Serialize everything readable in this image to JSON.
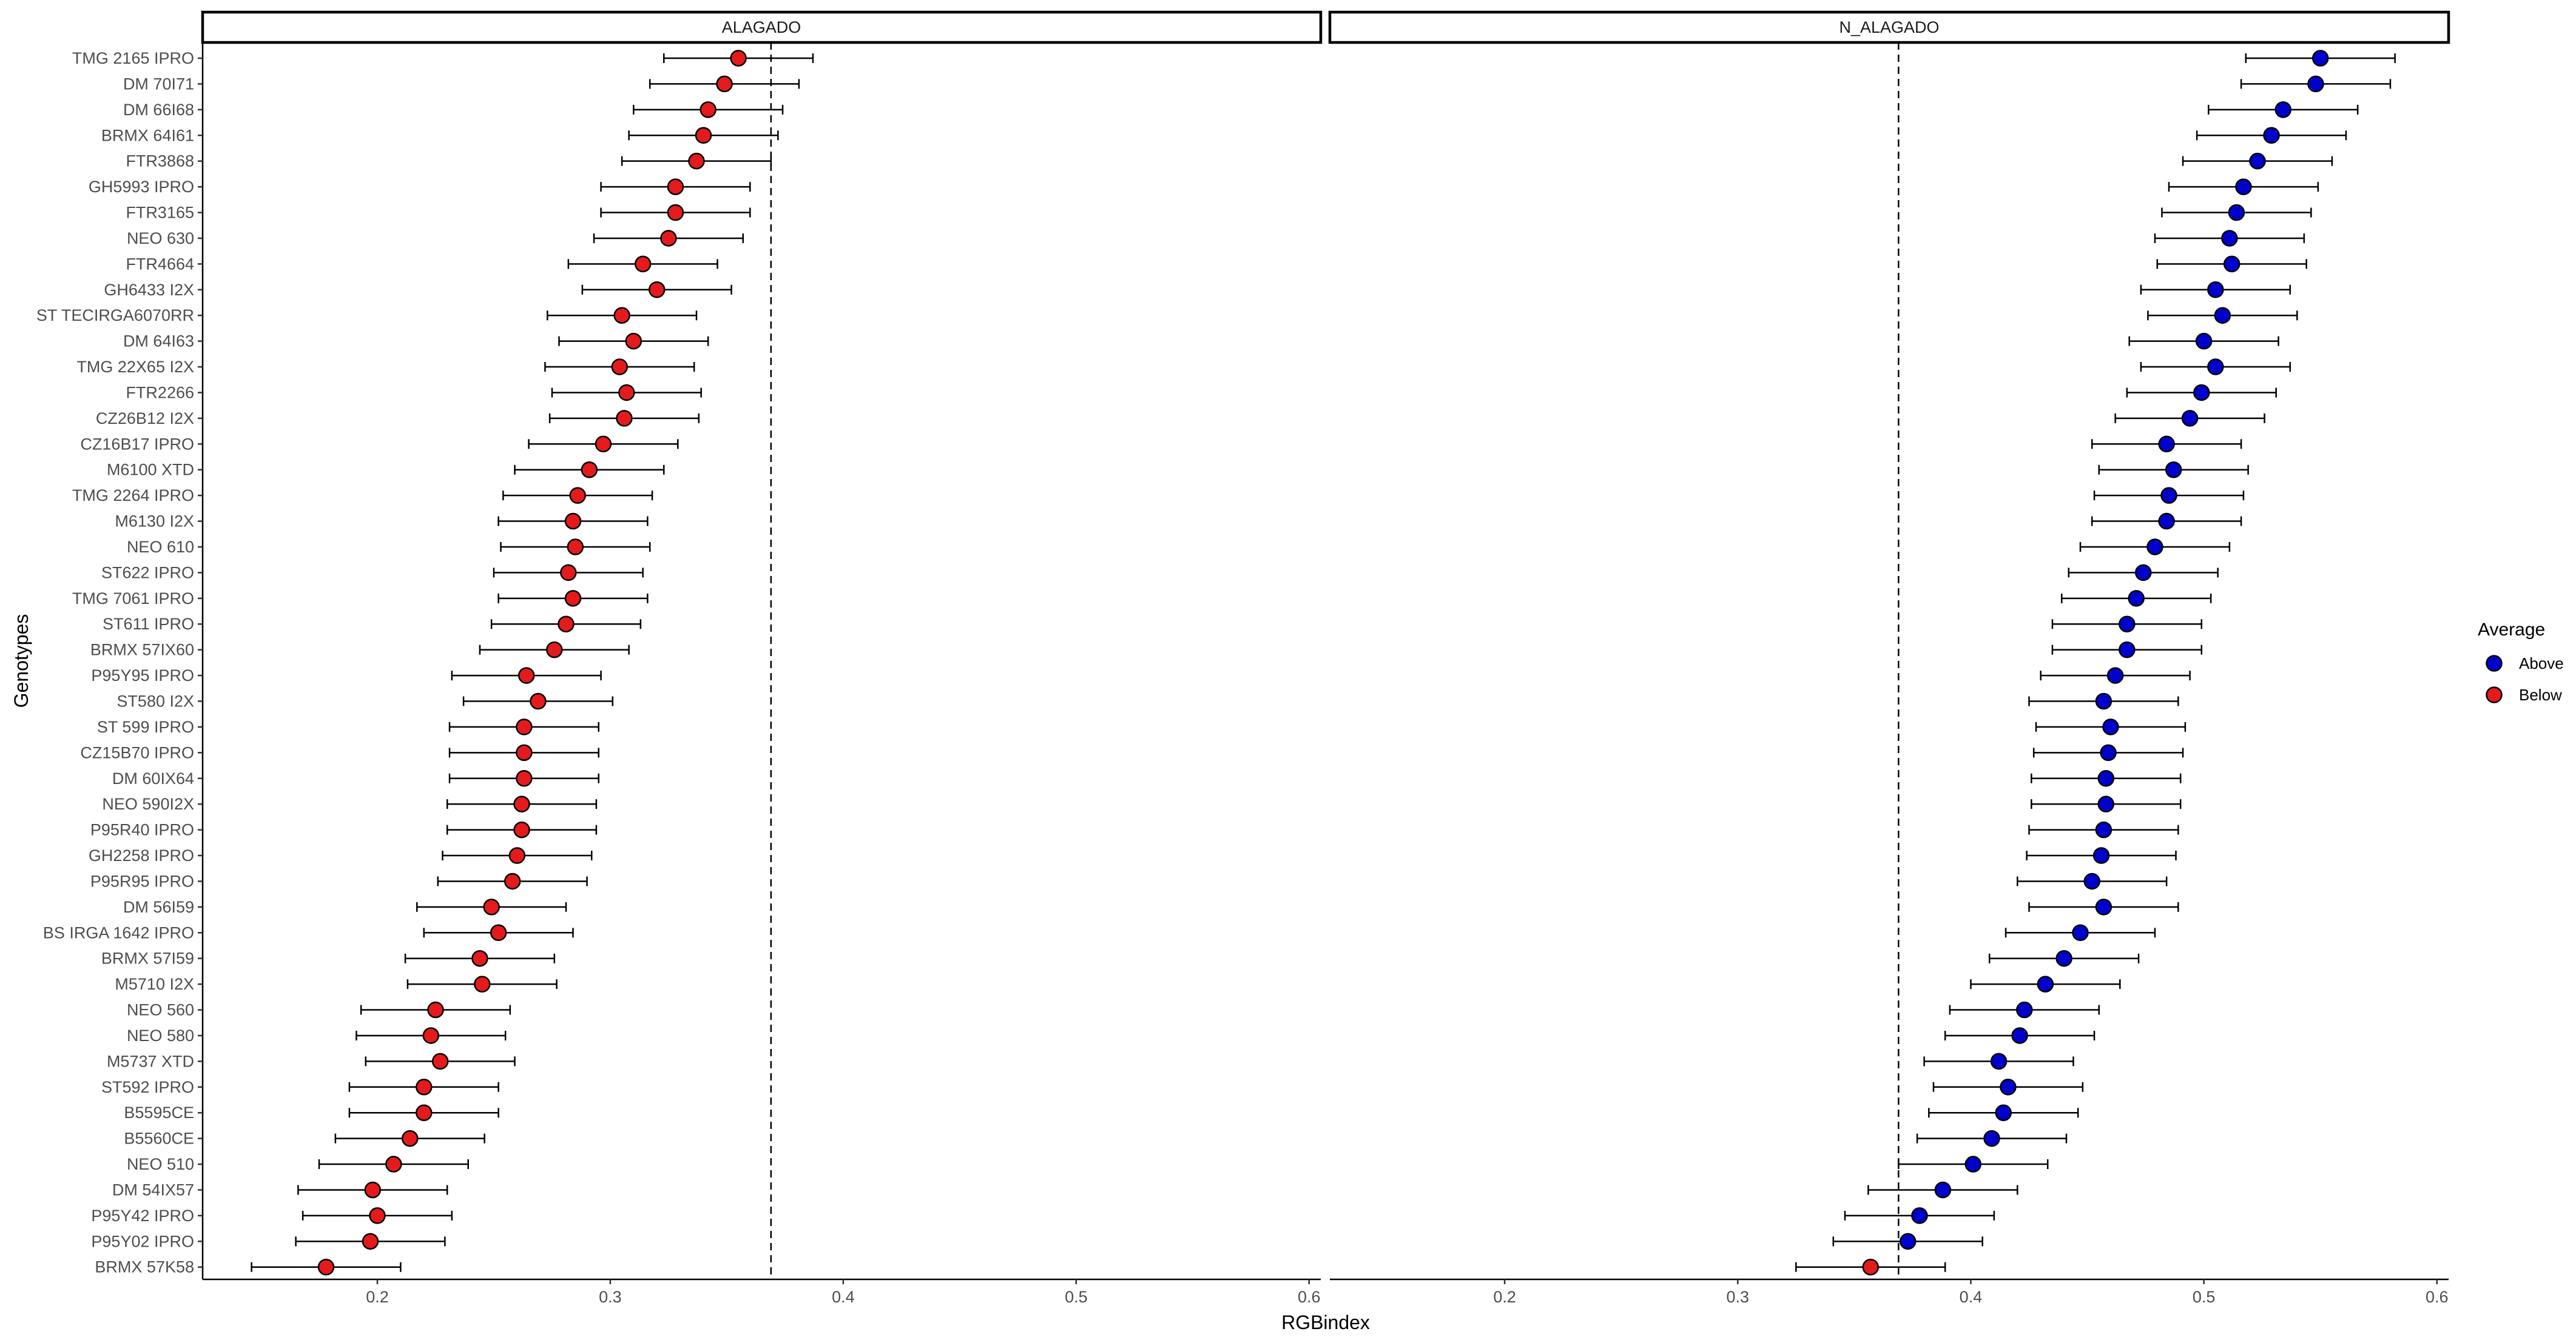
{
  "chart_data": {
    "type": "scatter",
    "xlabel": "RGBindex",
    "ylabel": "Genotypes",
    "xlim": [
      0.125,
      0.605
    ],
    "x_ticks": [
      0.2,
      0.3,
      0.4,
      0.5,
      0.6
    ],
    "x_tick_labels": [
      "0.2",
      "0.3",
      "0.4",
      "0.5",
      "0.6"
    ],
    "reference_line_x": 0.369,
    "reference_line_style": "dashed",
    "grid": false,
    "legend": {
      "title": "Average",
      "placement": "right",
      "entries": [
        {
          "label": "Above",
          "color": "#0000CD"
        },
        {
          "label": "Below",
          "color": "#E41A1C"
        }
      ]
    },
    "colors": {
      "Above": "#0000CD",
      "Below": "#E41A1C"
    },
    "genotypes": [
      "TMG 2165 IPRO",
      "DM 70I71",
      "DM 66I68",
      "BRMX 64I61",
      "FTR3868",
      "GH5993 IPRO",
      "FTR3165",
      "NEO 630",
      "FTR4664",
      "GH6433 I2X",
      "ST TECIRGA6070RR",
      "DM 64I63",
      "TMG 22X65 I2X",
      "FTR2266",
      "CZ26B12 I2X",
      "CZ16B17 IPRO",
      "M6100 XTD",
      "TMG 2264 IPRO",
      "M6130 I2X",
      "NEO 610",
      "ST622 IPRO",
      "TMG 7061 IPRO",
      "ST611 IPRO",
      "BRMX 57IX60",
      "P95Y95 IPRO",
      "ST580 I2X",
      "ST 599 IPRO",
      "CZ15B70 IPRO",
      "DM 60IX64",
      "NEO 590I2X",
      "P95R40 IPRO",
      "GH2258 IPRO",
      "P95R95 IPRO",
      "DM 56I59",
      "BS IRGA 1642 IPRO",
      "BRMX 57I59",
      "M5710 I2X",
      "NEO 560",
      "NEO 580",
      "M5737 XTD",
      "ST592 IPRO",
      "B5595CE",
      "B5560CE",
      "NEO 510",
      "DM 54IX57",
      "P95Y42 IPRO",
      "P95Y02 IPRO",
      "BRMX 57K58"
    ],
    "panels": [
      {
        "strip": "ALAGADO",
        "mean": [
          0.355,
          0.349,
          0.342,
          0.34,
          0.337,
          0.328,
          0.328,
          0.325,
          0.314,
          0.32,
          0.305,
          0.31,
          0.304,
          0.307,
          0.306,
          0.297,
          0.291,
          0.286,
          0.284,
          0.285,
          0.282,
          0.284,
          0.281,
          0.276,
          0.264,
          0.269,
          0.263,
          0.263,
          0.263,
          0.262,
          0.262,
          0.26,
          0.258,
          0.249,
          0.252,
          0.244,
          0.245,
          0.225,
          0.223,
          0.227,
          0.22,
          0.22,
          0.214,
          0.207,
          0.198,
          0.2,
          0.197,
          0.178
        ],
        "lower": [
          0.323,
          0.317,
          0.31,
          0.308,
          0.305,
          0.296,
          0.296,
          0.293,
          0.282,
          0.288,
          0.273,
          0.278,
          0.272,
          0.275,
          0.274,
          0.265,
          0.259,
          0.254,
          0.252,
          0.253,
          0.25,
          0.252,
          0.249,
          0.244,
          0.232,
          0.237,
          0.231,
          0.231,
          0.231,
          0.23,
          0.23,
          0.228,
          0.226,
          0.217,
          0.22,
          0.212,
          0.213,
          0.193,
          0.191,
          0.195,
          0.188,
          0.188,
          0.182,
          0.175,
          0.166,
          0.168,
          0.165,
          0.146
        ],
        "upper": [
          0.387,
          0.381,
          0.374,
          0.372,
          0.369,
          0.36,
          0.36,
          0.357,
          0.346,
          0.352,
          0.337,
          0.342,
          0.336,
          0.339,
          0.338,
          0.329,
          0.323,
          0.318,
          0.316,
          0.317,
          0.314,
          0.316,
          0.313,
          0.308,
          0.296,
          0.301,
          0.295,
          0.295,
          0.295,
          0.294,
          0.294,
          0.292,
          0.29,
          0.281,
          0.284,
          0.276,
          0.277,
          0.257,
          0.255,
          0.259,
          0.252,
          0.252,
          0.246,
          0.239,
          0.23,
          0.232,
          0.229,
          0.21
        ],
        "average": [
          "Below",
          "Below",
          "Below",
          "Below",
          "Below",
          "Below",
          "Below",
          "Below",
          "Below",
          "Below",
          "Below",
          "Below",
          "Below",
          "Below",
          "Below",
          "Below",
          "Below",
          "Below",
          "Below",
          "Below",
          "Below",
          "Below",
          "Below",
          "Below",
          "Below",
          "Below",
          "Below",
          "Below",
          "Below",
          "Below",
          "Below",
          "Below",
          "Below",
          "Below",
          "Below",
          "Below",
          "Below",
          "Below",
          "Below",
          "Below",
          "Below",
          "Below",
          "Below",
          "Below",
          "Below",
          "Below",
          "Below",
          "Below"
        ]
      },
      {
        "strip": "N_ALAGADO",
        "mean": [
          0.55,
          0.548,
          0.534,
          0.529,
          0.523,
          0.517,
          0.514,
          0.511,
          0.512,
          0.505,
          0.508,
          0.5,
          0.505,
          0.499,
          0.494,
          0.484,
          0.487,
          0.485,
          0.484,
          0.479,
          0.474,
          0.471,
          0.467,
          0.467,
          0.462,
          0.457,
          0.46,
          0.459,
          0.458,
          0.458,
          0.457,
          0.456,
          0.452,
          0.457,
          0.447,
          0.44,
          0.432,
          0.423,
          0.421,
          0.412,
          0.416,
          0.414,
          0.409,
          0.401,
          0.388,
          0.378,
          0.373,
          0.357
        ],
        "lower": [
          0.518,
          0.516,
          0.502,
          0.497,
          0.491,
          0.485,
          0.482,
          0.479,
          0.48,
          0.473,
          0.476,
          0.468,
          0.473,
          0.467,
          0.462,
          0.452,
          0.455,
          0.453,
          0.452,
          0.447,
          0.442,
          0.439,
          0.435,
          0.435,
          0.43,
          0.425,
          0.428,
          0.427,
          0.426,
          0.426,
          0.425,
          0.424,
          0.42,
          0.425,
          0.415,
          0.408,
          0.4,
          0.391,
          0.389,
          0.38,
          0.384,
          0.382,
          0.377,
          0.369,
          0.356,
          0.346,
          0.341,
          0.325
        ],
        "upper": [
          0.582,
          0.58,
          0.566,
          0.561,
          0.555,
          0.549,
          0.546,
          0.543,
          0.544,
          0.537,
          0.54,
          0.532,
          0.537,
          0.531,
          0.526,
          0.516,
          0.519,
          0.517,
          0.516,
          0.511,
          0.506,
          0.503,
          0.499,
          0.499,
          0.494,
          0.489,
          0.492,
          0.491,
          0.49,
          0.49,
          0.489,
          0.488,
          0.484,
          0.489,
          0.479,
          0.472,
          0.464,
          0.455,
          0.453,
          0.444,
          0.448,
          0.446,
          0.441,
          0.433,
          0.42,
          0.41,
          0.405,
          0.389
        ],
        "average": [
          "Above",
          "Above",
          "Above",
          "Above",
          "Above",
          "Above",
          "Above",
          "Above",
          "Above",
          "Above",
          "Above",
          "Above",
          "Above",
          "Above",
          "Above",
          "Above",
          "Above",
          "Above",
          "Above",
          "Above",
          "Above",
          "Above",
          "Above",
          "Above",
          "Above",
          "Above",
          "Above",
          "Above",
          "Above",
          "Above",
          "Above",
          "Above",
          "Above",
          "Above",
          "Above",
          "Above",
          "Above",
          "Above",
          "Above",
          "Above",
          "Above",
          "Above",
          "Above",
          "Above",
          "Above",
          "Above",
          "Above",
          "Below"
        ]
      }
    ]
  }
}
